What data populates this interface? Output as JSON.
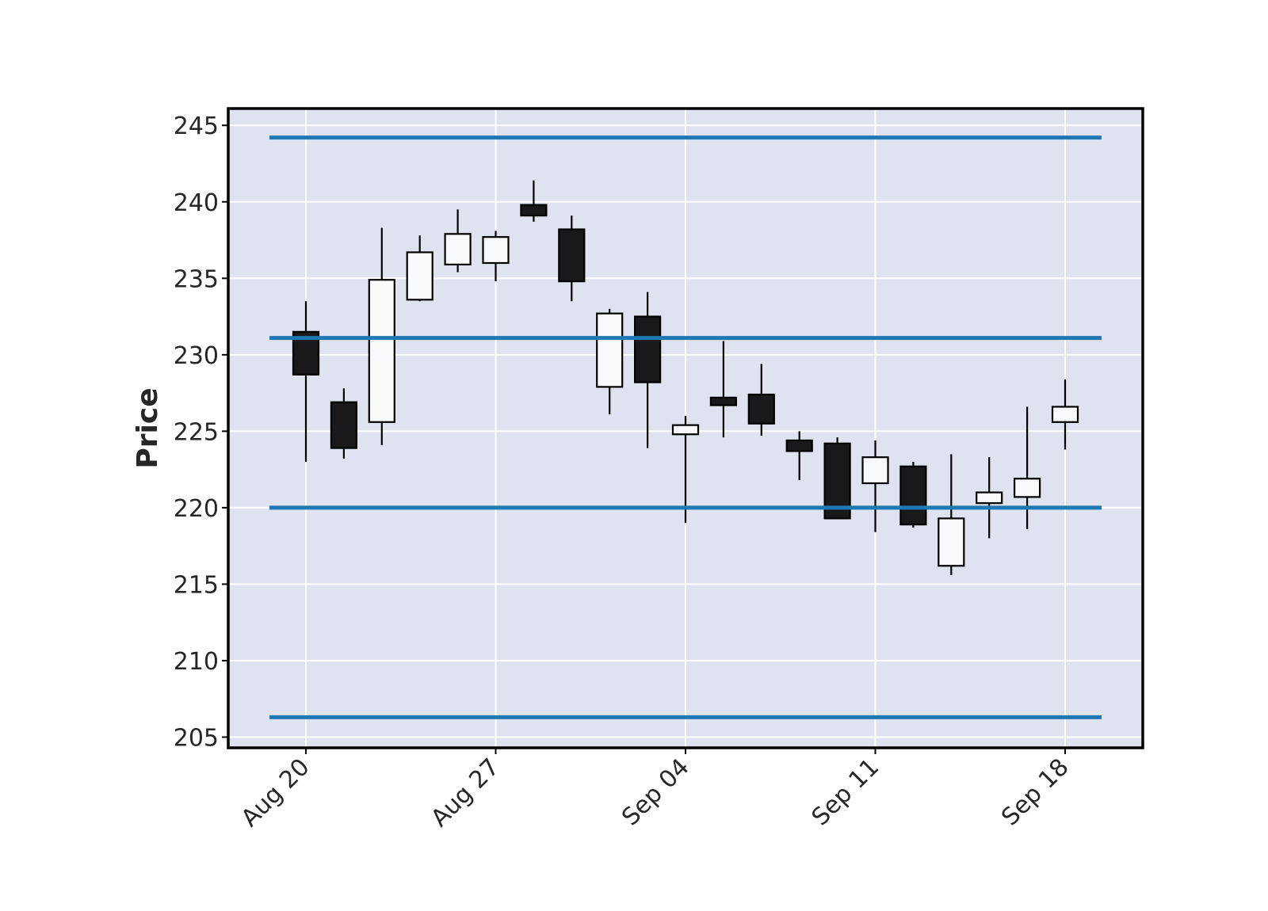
{
  "chart_data": {
    "type": "candlestick",
    "title": "",
    "xlabel": "",
    "ylabel": "Price",
    "ylim": [
      204.3,
      246.1
    ],
    "yticks": [
      205,
      210,
      215,
      220,
      225,
      230,
      235,
      240,
      245
    ],
    "grid": true,
    "x_tick_labels": [
      {
        "date": "2018-08-20",
        "label": "Aug 20"
      },
      {
        "date": "2018-08-27",
        "label": "Aug 27"
      },
      {
        "date": "2018-09-04",
        "label": "Sep 04"
      },
      {
        "date": "2018-09-11",
        "label": "Sep 11"
      },
      {
        "date": "2018-09-18",
        "label": "Sep 18"
      }
    ],
    "candles": [
      {
        "date": "2018-08-20",
        "open": 231.5,
        "high": 233.5,
        "low": 223.0,
        "close": 228.7
      },
      {
        "date": "2018-08-21",
        "open": 226.9,
        "high": 227.8,
        "low": 223.2,
        "close": 223.9
      },
      {
        "date": "2018-08-22",
        "open": 225.6,
        "high": 238.3,
        "low": 224.1,
        "close": 234.9
      },
      {
        "date": "2018-08-23",
        "open": 233.6,
        "high": 237.8,
        "low": 233.5,
        "close": 236.7
      },
      {
        "date": "2018-08-24",
        "open": 235.9,
        "high": 239.5,
        "low": 235.4,
        "close": 237.9
      },
      {
        "date": "2018-08-27",
        "open": 236.0,
        "high": 238.1,
        "low": 234.8,
        "close": 237.7
      },
      {
        "date": "2018-08-28",
        "open": 239.8,
        "high": 241.4,
        "low": 238.7,
        "close": 239.1
      },
      {
        "date": "2018-08-29",
        "open": 238.2,
        "high": 239.1,
        "low": 233.5,
        "close": 234.8
      },
      {
        "date": "2018-08-30",
        "open": 227.9,
        "high": 233.0,
        "low": 226.1,
        "close": 232.7
      },
      {
        "date": "2018-08-31",
        "open": 232.5,
        "high": 234.1,
        "low": 223.9,
        "close": 228.2
      },
      {
        "date": "2018-09-04",
        "open": 224.8,
        "high": 226.0,
        "low": 219.0,
        "close": 225.4
      },
      {
        "date": "2018-09-05",
        "open": 227.2,
        "high": 230.9,
        "low": 224.6,
        "close": 226.7
      },
      {
        "date": "2018-09-06",
        "open": 227.4,
        "high": 229.4,
        "low": 224.7,
        "close": 225.5
      },
      {
        "date": "2018-09-07",
        "open": 224.4,
        "high": 225.0,
        "low": 221.8,
        "close": 223.7
      },
      {
        "date": "2018-09-10",
        "open": 224.2,
        "high": 224.6,
        "low": 219.3,
        "close": 219.3
      },
      {
        "date": "2018-09-11",
        "open": 221.6,
        "high": 224.4,
        "low": 218.4,
        "close": 223.3
      },
      {
        "date": "2018-09-12",
        "open": 222.7,
        "high": 223.0,
        "low": 218.7,
        "close": 218.9
      },
      {
        "date": "2018-09-13",
        "open": 216.2,
        "high": 223.5,
        "low": 215.6,
        "close": 219.3
      },
      {
        "date": "2018-09-14",
        "open": 220.3,
        "high": 223.3,
        "low": 218.0,
        "close": 221.0
      },
      {
        "date": "2018-09-17",
        "open": 220.7,
        "high": 226.6,
        "low": 218.6,
        "close": 221.9
      },
      {
        "date": "2018-09-18",
        "open": 225.6,
        "high": 228.4,
        "low": 223.8,
        "close": 226.6
      }
    ],
    "hlines": [
      244.2,
      231.1,
      220.0,
      206.3
    ],
    "colors": {
      "background": "#dee3ef",
      "grid": "#ffffff",
      "up_fill": "#f8f9fb",
      "down_fill": "#19191b",
      "edge": "#000000",
      "hline": "#1f77b4",
      "frame": "#000000",
      "text": "#262626"
    }
  }
}
